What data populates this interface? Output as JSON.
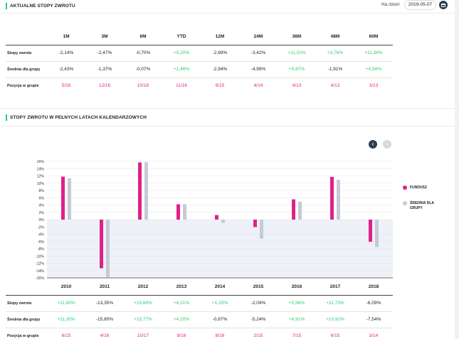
{
  "current": {
    "title": "AKTUALNE STOPY ZWROTU",
    "date_label": "Na dzień",
    "date_value": "2019-05-07",
    "columns": [
      "1M",
      "3M",
      "6M",
      "YTD",
      "12M",
      "24M",
      "36M",
      "48M",
      "60M"
    ],
    "rows": [
      {
        "label": "Stopy zwrotu",
        "kind": "value",
        "values": [
          "-2,14%",
          "-2,47%",
          "-0,70%",
          "+0,20%",
          "-2,69%",
          "-3,42%",
          "+11,02%",
          "+3,76%",
          "+11,38%"
        ]
      },
      {
        "label": "Średnia dla grupy",
        "kind": "value",
        "values": [
          "-2,43%",
          "-1,37%",
          "-0,07%",
          "+1,46%",
          "-2,94%",
          "-4,99%",
          "+9,87%",
          "-1,91%",
          "+4,56%"
        ]
      },
      {
        "label": "Pozycja w grupie",
        "kind": "rank",
        "values": [
          "5/16",
          "12/16",
          "10/16",
          "11/16",
          "9/15",
          "4/14",
          "4/13",
          "4/13",
          "3/13"
        ]
      }
    ]
  },
  "annual": {
    "title": "STOPY ZWROTU W PEŁNYCH LATACH KALENDARZOWYCH",
    "nav": {
      "prev_icon": "chevron-left-icon",
      "next_icon": "chevron-right-icon"
    },
    "legend": [
      {
        "label": "FUNDUSZ",
        "color": "#e0218a"
      },
      {
        "label": "ŚREDNIA DLA GRUPY",
        "color": "#c5cad6"
      }
    ],
    "rows": [
      {
        "label": "Stopy zwrotu",
        "kind": "value",
        "values": [
          "+11,80%",
          "-13,35%",
          "+15,69%",
          "+4,21%",
          "+1,25%",
          "-2,04%",
          "+5,56%",
          "+11,73%",
          "-6,09%"
        ]
      },
      {
        "label": "Średnia dla grupy",
        "kind": "value",
        "values": [
          "+11,35%",
          "-15,80%",
          "+15,77%",
          "+4,20%",
          "-0,87%",
          "-5,24%",
          "+4,91%",
          "+10,92%",
          "-7,54%"
        ]
      },
      {
        "label": "Pozycja w grupie",
        "kind": "rank",
        "values": [
          "6/15",
          "4/16",
          "10/17",
          "8/16",
          "8/16",
          "2/15",
          "7/15",
          "6/15",
          "3/14"
        ]
      }
    ]
  },
  "chart_data": {
    "type": "bar",
    "categories": [
      "2010",
      "2011",
      "2012",
      "2013",
      "2014",
      "2015",
      "2016",
      "2017",
      "2018"
    ],
    "series": [
      {
        "name": "FUNDUSZ",
        "color": "#e0218a",
        "values": [
          11.8,
          -13.35,
          15.69,
          4.21,
          1.25,
          -2.04,
          5.56,
          11.73,
          -6.09
        ]
      },
      {
        "name": "ŚREDNIA DLA GRUPY",
        "color": "#c5cad6",
        "values": [
          11.35,
          -15.8,
          15.77,
          4.2,
          -0.87,
          -5.24,
          4.91,
          10.92,
          -7.54
        ]
      }
    ],
    "ylim": [
      -16,
      16
    ],
    "yticks": [
      16,
      14,
      12,
      10,
      8,
      6,
      4,
      2,
      0,
      -2,
      -4,
      -6,
      -8,
      -10,
      -12,
      -14,
      -16
    ],
    "ytick_labels": [
      "16%",
      "14%",
      "12%",
      "10%",
      "8%",
      "6%",
      "4%",
      "2%",
      "0%",
      "-2%",
      "-4%",
      "-6%",
      "-8%",
      "-10%",
      "-12%",
      "-14%",
      "-16%"
    ],
    "grid": true,
    "negative_region_shaded": true,
    "legend_position": "right"
  }
}
